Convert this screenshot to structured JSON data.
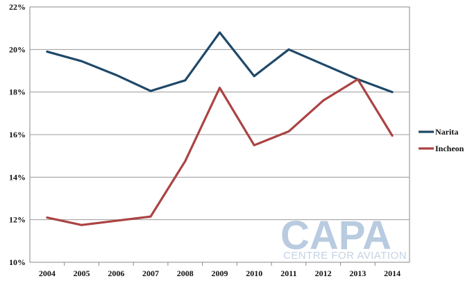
{
  "chart_data": {
    "type": "line",
    "categories": [
      "2004",
      "2005",
      "2006",
      "2007",
      "2008",
      "2009",
      "2010",
      "2011",
      "2012",
      "2013",
      "2014"
    ],
    "series": [
      {
        "name": "Narita",
        "color": "#1f4868",
        "values": [
          19.9,
          19.45,
          18.8,
          18.05,
          18.55,
          20.8,
          18.75,
          20.0,
          19.3,
          18.6,
          18.0
        ]
      },
      {
        "name": "Incheon",
        "color": "#ab4343",
        "values": [
          12.1,
          11.75,
          11.95,
          12.15,
          14.75,
          18.2,
          15.5,
          16.15,
          17.6,
          18.6,
          15.95
        ]
      }
    ],
    "ylim": [
      10,
      22
    ],
    "yticks": [
      10,
      12,
      14,
      16,
      18,
      20,
      22
    ],
    "ytick_labels": [
      "10%",
      "12%",
      "14%",
      "16%",
      "18%",
      "20%",
      "22%"
    ],
    "grid": true,
    "legend": "right",
    "title": "",
    "xlabel": "",
    "ylabel": ""
  },
  "watermark": {
    "brand": "CAPA",
    "tagline": "CENTRE FOR AVIATION",
    "color": "#b9cbe0"
  }
}
